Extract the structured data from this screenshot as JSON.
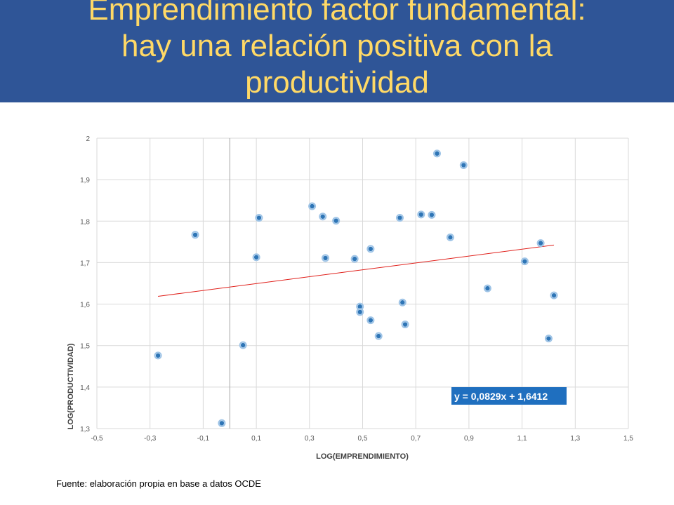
{
  "slide": {
    "title": "Emprendimiento factor fundamental:\nhay una relación positiva con la\nproductividad",
    "source": "Fuente: elaboración propia en base a datos OCDE"
  },
  "colors": {
    "header_bg": "#2f5597",
    "title_text": "#ffd966",
    "point": "#2e75b6",
    "trendline": "#e0201b",
    "equation_box": "#1f6fbf"
  },
  "chart_data": {
    "type": "scatter",
    "xlabel": "LOG(EMPRENDIMIENTO)",
    "ylabel": "LOG(PRODUCTIVIDAD)",
    "xlim": [
      -0.5,
      1.5
    ],
    "ylim": [
      1.3,
      2.0
    ],
    "x_ticks": [
      "-0,5",
      "-0,3",
      "-0,1",
      "0,1",
      "0,3",
      "0,5",
      "0,7",
      "0,9",
      "1,1",
      "1,3",
      "1,5"
    ],
    "y_ticks": [
      "2",
      "1,9",
      "1,8",
      "1,7",
      "1,6",
      "1,5",
      "1,4",
      "1,3"
    ],
    "grid": true,
    "points": [
      {
        "x": -0.27,
        "y": 1.476
      },
      {
        "x": -0.13,
        "y": 1.767
      },
      {
        "x": -0.03,
        "y": 1.313
      },
      {
        "x": 0.05,
        "y": 1.501
      },
      {
        "x": 0.1,
        "y": 1.713
      },
      {
        "x": 0.11,
        "y": 1.808
      },
      {
        "x": 0.31,
        "y": 1.836
      },
      {
        "x": 0.35,
        "y": 1.811
      },
      {
        "x": 0.36,
        "y": 1.711
      },
      {
        "x": 0.4,
        "y": 1.801
      },
      {
        "x": 0.47,
        "y": 1.709
      },
      {
        "x": 0.49,
        "y": 1.594
      },
      {
        "x": 0.49,
        "y": 1.581
      },
      {
        "x": 0.53,
        "y": 1.733
      },
      {
        "x": 0.53,
        "y": 1.561
      },
      {
        "x": 0.56,
        "y": 1.523
      },
      {
        "x": 0.64,
        "y": 1.808
      },
      {
        "x": 0.65,
        "y": 1.604
      },
      {
        "x": 0.66,
        "y": 1.551
      },
      {
        "x": 0.72,
        "y": 1.816
      },
      {
        "x": 0.76,
        "y": 1.815
      },
      {
        "x": 0.78,
        "y": 1.963
      },
      {
        "x": 0.83,
        "y": 1.761
      },
      {
        "x": 0.88,
        "y": 1.935
      },
      {
        "x": 0.97,
        "y": 1.638
      },
      {
        "x": 1.11,
        "y": 1.703
      },
      {
        "x": 1.17,
        "y": 1.747
      },
      {
        "x": 1.2,
        "y": 1.517
      },
      {
        "x": 1.22,
        "y": 1.621
      }
    ],
    "trendline": {
      "slope": 0.0829,
      "intercept": 1.6412,
      "x_range": [
        -0.27,
        1.22
      ]
    },
    "annotation": "y = 0,0829x + 1,6412"
  }
}
